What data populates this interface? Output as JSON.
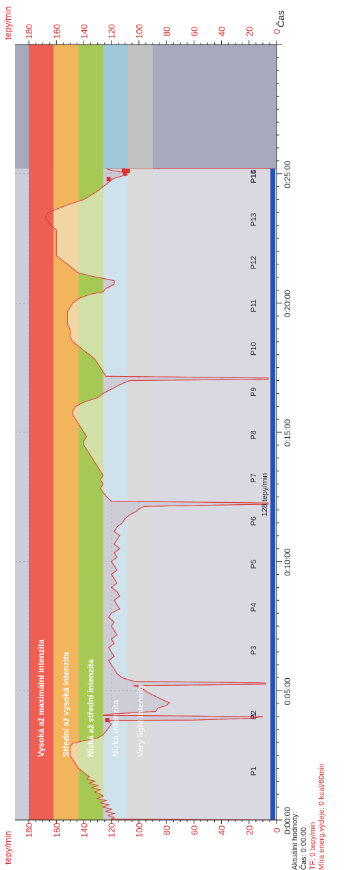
{
  "chart_data": {
    "type": "area",
    "y_axis_title": "tepy/min",
    "x_axis_title": "Čas",
    "yticks": [
      "0",
      "20",
      "40",
      "60",
      "80",
      "100",
      "120",
      "140",
      "160",
      "180"
    ],
    "xticks": [
      "0:00:00",
      "0:05:00",
      "0:10:00",
      "0:15:00",
      "0:20:00",
      "0:25:00"
    ],
    "ylim": [
      0,
      190
    ],
    "xlim_seconds": [
      0,
      1800
    ],
    "zones": [
      {
        "label": "Vysoká až maximální intenzita",
        "from": 162,
        "to": 180,
        "color": "#ec5f52",
        "band": "#ec5f52"
      },
      {
        "label": "Střední až vysoká intenzita",
        "from": 144,
        "to": 162,
        "color": "#f2b55c",
        "band": "#f2d5a4"
      },
      {
        "label": "Nízká až střední intenzita",
        "from": 126,
        "to": 144,
        "color": "#a6c956",
        "band": "#d1e0a6"
      },
      {
        "label": "Nízká intenzita",
        "from": 108,
        "to": 126,
        "color": "#9fc9d9",
        "band": "#cfe1ea"
      },
      {
        "label": "Very light intensity",
        "from": 90,
        "to": 108,
        "color": "#c2c2c2",
        "band": "#dadada"
      }
    ],
    "laps": [
      {
        "label": "P1",
        "t": 120
      },
      {
        "label": "1",
        "t": 250
      },
      {
        "label": "P2",
        "t": 250
      },
      {
        "label": "P3",
        "t": 400
      },
      {
        "label": "P4",
        "t": 500
      },
      {
        "label": "P5",
        "t": 600
      },
      {
        "label": "P6",
        "t": 700
      },
      {
        "label": "P7",
        "t": 800
      },
      {
        "label": "P8",
        "t": 900
      },
      {
        "label": "P9",
        "t": 1000
      },
      {
        "label": "P10",
        "t": 1100
      },
      {
        "label": "P11",
        "t": 1200
      },
      {
        "label": "P12",
        "t": 1300
      },
      {
        "label": "P13",
        "t": 1400
      },
      {
        "label": "P14",
        "t": 1500
      },
      {
        "label": "P15",
        "t": 1500
      },
      {
        "label": "P16",
        "t": 1500
      }
    ],
    "annotation": "128 tepy/min",
    "heart_rate": [
      [
        0,
        0
      ],
      [
        2,
        120
      ],
      [
        6,
        118
      ],
      [
        10,
        122
      ],
      [
        15,
        118
      ],
      [
        20,
        124
      ],
      [
        25,
        120
      ],
      [
        30,
        126
      ],
      [
        35,
        122
      ],
      [
        40,
        128
      ],
      [
        45,
        124
      ],
      [
        50,
        130
      ],
      [
        55,
        126
      ],
      [
        60,
        128
      ],
      [
        65,
        132
      ],
      [
        70,
        128
      ],
      [
        75,
        134
      ],
      [
        80,
        130
      ],
      [
        85,
        136
      ],
      [
        90,
        132
      ],
      [
        95,
        138
      ],
      [
        100,
        136
      ],
      [
        110,
        140
      ],
      [
        120,
        144
      ],
      [
        130,
        146
      ],
      [
        140,
        148
      ],
      [
        150,
        150
      ],
      [
        160,
        150
      ],
      [
        170,
        150
      ],
      [
        178,
        148
      ],
      [
        184,
        140
      ],
      [
        190,
        130
      ],
      [
        198,
        126
      ],
      [
        206,
        124
      ],
      [
        214,
        122
      ],
      [
        222,
        120
      ],
      [
        228,
        122
      ],
      [
        231,
        123
      ],
      [
        232,
        60
      ],
      [
        236,
        20
      ],
      [
        240,
        10
      ],
      [
        243,
        126
      ],
      [
        246,
        120
      ],
      [
        252,
        88
      ],
      [
        260,
        86
      ],
      [
        266,
        80
      ],
      [
        272,
        78
      ],
      [
        278,
        82
      ],
      [
        284,
        86
      ],
      [
        290,
        90
      ],
      [
        296,
        94
      ],
      [
        302,
        96
      ],
      [
        308,
        100
      ],
      [
        312,
        104
      ],
      [
        315,
        8
      ],
      [
        318,
        8
      ],
      [
        322,
        104
      ],
      [
        326,
        108
      ],
      [
        330,
        112
      ],
      [
        340,
        116
      ],
      [
        350,
        118
      ],
      [
        360,
        120
      ],
      [
        370,
        122
      ],
      [
        380,
        118
      ],
      [
        390,
        120
      ],
      [
        400,
        122
      ],
      [
        410,
        118
      ],
      [
        420,
        120
      ],
      [
        430,
        116
      ],
      [
        440,
        118
      ],
      [
        450,
        120
      ],
      [
        460,
        118
      ],
      [
        470,
        122
      ],
      [
        480,
        120
      ],
      [
        490,
        114
      ],
      [
        500,
        116
      ],
      [
        510,
        118
      ],
      [
        520,
        114
      ],
      [
        530,
        116
      ],
      [
        540,
        120
      ],
      [
        550,
        116
      ],
      [
        560,
        118
      ],
      [
        570,
        120
      ],
      [
        580,
        116
      ],
      [
        590,
        118
      ],
      [
        600,
        120
      ],
      [
        610,
        116
      ],
      [
        620,
        118
      ],
      [
        630,
        114
      ],
      [
        640,
        118
      ],
      [
        650,
        116
      ],
      [
        660,
        114
      ],
      [
        670,
        118
      ],
      [
        680,
        116
      ],
      [
        690,
        112
      ],
      [
        700,
        110
      ],
      [
        710,
        106
      ],
      [
        716,
        102
      ],
      [
        722,
        100
      ],
      [
        728,
        96
      ],
      [
        733,
        6
      ],
      [
        736,
        6
      ],
      [
        740,
        120
      ],
      [
        746,
        122
      ],
      [
        752,
        124
      ],
      [
        760,
        126
      ],
      [
        770,
        128
      ],
      [
        780,
        126
      ],
      [
        790,
        128
      ],
      [
        800,
        126
      ],
      [
        810,
        128
      ],
      [
        820,
        130
      ],
      [
        830,
        132
      ],
      [
        840,
        134
      ],
      [
        850,
        136
      ],
      [
        860,
        138
      ],
      [
        870,
        140
      ],
      [
        880,
        140
      ],
      [
        890,
        138
      ],
      [
        900,
        140
      ],
      [
        910,
        142
      ],
      [
        920,
        144
      ],
      [
        930,
        146
      ],
      [
        940,
        148
      ],
      [
        950,
        148
      ],
      [
        960,
        146
      ],
      [
        970,
        140
      ],
      [
        980,
        130
      ],
      [
        990,
        126
      ],
      [
        1000,
        120
      ],
      [
        1010,
        114
      ],
      [
        1016,
        110
      ],
      [
        1020,
        106
      ],
      [
        1023,
        6
      ],
      [
        1026,
        6
      ],
      [
        1030,
        124
      ],
      [
        1040,
        126
      ],
      [
        1050,
        128
      ],
      [
        1060,
        130
      ],
      [
        1070,
        132
      ],
      [
        1080,
        136
      ],
      [
        1090,
        140
      ],
      [
        1100,
        144
      ],
      [
        1110,
        148
      ],
      [
        1120,
        150
      ],
      [
        1130,
        150
      ],
      [
        1140,
        150
      ],
      [
        1150,
        152
      ],
      [
        1160,
        152
      ],
      [
        1170,
        152
      ],
      [
        1180,
        152
      ],
      [
        1190,
        150
      ],
      [
        1200,
        148
      ],
      [
        1210,
        144
      ],
      [
        1220,
        136
      ],
      [
        1226,
        126
      ],
      [
        1234,
        124
      ],
      [
        1240,
        120
      ],
      [
        1244,
        118
      ],
      [
        1252,
        118
      ],
      [
        1256,
        124
      ],
      [
        1262,
        134
      ],
      [
        1270,
        144
      ],
      [
        1280,
        148
      ],
      [
        1290,
        152
      ],
      [
        1300,
        156
      ],
      [
        1310,
        160
      ],
      [
        1320,
        160
      ],
      [
        1330,
        160
      ],
      [
        1340,
        160
      ],
      [
        1350,
        160
      ],
      [
        1360,
        160
      ],
      [
        1370,
        160
      ],
      [
        1380,
        164
      ],
      [
        1390,
        166
      ],
      [
        1400,
        168
      ],
      [
        1410,
        166
      ],
      [
        1420,
        158
      ],
      [
        1430,
        150
      ],
      [
        1440,
        140
      ],
      [
        1460,
        130
      ],
      [
        1480,
        122
      ],
      [
        1490,
        118
      ],
      [
        1495,
        112
      ],
      [
        1500,
        110
      ],
      [
        1504,
        112
      ],
      [
        1508,
        120
      ],
      [
        1512,
        124
      ]
    ],
    "markers": [
      [
        232,
        123
      ],
      [
        1488,
        122
      ],
      [
        1500,
        110
      ],
      [
        1506,
        108
      ],
      [
        1508,
        111
      ]
    ]
  },
  "current_values": {
    "heading": "Aktuální hodnoty:",
    "time": "Čas: 0:00:00",
    "hr": "TF: 0 tepy/min",
    "energy": "Míra energ.výdeje: 0 kcal/60min"
  }
}
